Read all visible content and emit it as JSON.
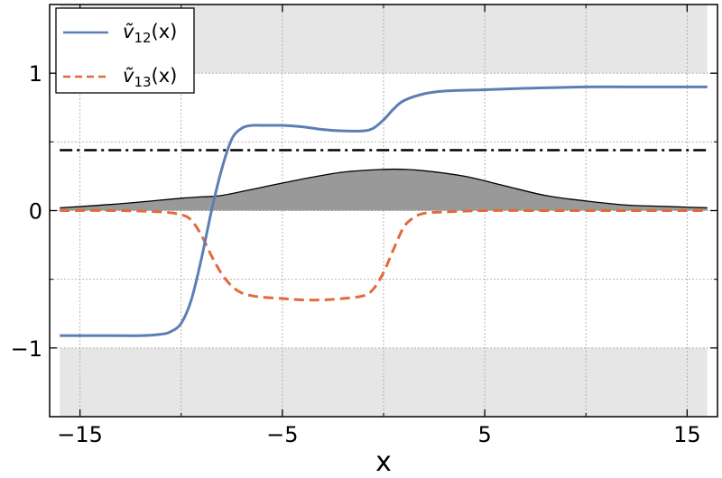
{
  "chart_data": {
    "type": "line",
    "title": "",
    "xlabel": "x",
    "ylabel": "",
    "xlim": [
      -16.5,
      16.5
    ],
    "ylim": [
      -1.5,
      1.5
    ],
    "grid": true,
    "legend_position": "top-left",
    "x_ticks": [
      -15,
      -5,
      5,
      15
    ],
    "x_tick_labels": [
      "−15",
      "−5",
      "5",
      "15"
    ],
    "y_ticks": [
      -1,
      0,
      1
    ],
    "y_tick_labels": [
      "−1",
      "0",
      "1"
    ],
    "colors": {
      "v12": "#5b7fb3",
      "v13": "#e26a3c",
      "shaded_band": "#e6e6e6",
      "filled_area": "#999999",
      "dashdot_line": "#000000"
    },
    "shaded_regions": [
      {
        "x_range": [
          -16,
          16
        ],
        "y_range": [
          1,
          1.5
        ]
      },
      {
        "x_range": [
          -16,
          16
        ],
        "y_range": [
          -1.5,
          -1
        ]
      }
    ],
    "reference_line": {
      "style": "dash-dot",
      "y": 0.44
    },
    "series": [
      {
        "name": "ṽ₁₂(x)",
        "legend_label": {
          "main": "ṽ",
          "sub": "12",
          "arg": "(x)"
        },
        "style": "solid",
        "x": [
          -16,
          -14,
          -12,
          -11,
          -10.5,
          -10,
          -9.5,
          -9,
          -8.5,
          -8,
          -7.5,
          -7,
          -6.5,
          -6,
          -5,
          -4,
          -3,
          -2,
          -1,
          -0.5,
          0,
          0.5,
          1,
          2,
          3,
          5,
          7,
          10,
          13,
          16
        ],
        "y": [
          -0.91,
          -0.91,
          -0.91,
          -0.9,
          -0.88,
          -0.82,
          -0.65,
          -0.35,
          0.0,
          0.3,
          0.52,
          0.6,
          0.62,
          0.62,
          0.62,
          0.61,
          0.59,
          0.58,
          0.58,
          0.6,
          0.66,
          0.74,
          0.8,
          0.85,
          0.87,
          0.88,
          0.89,
          0.9,
          0.9,
          0.9
        ]
      },
      {
        "name": "ṽ₁₃(x)",
        "legend_label": {
          "main": "ṽ",
          "sub": "13",
          "arg": "(x)"
        },
        "style": "dashed",
        "x": [
          -16,
          -13,
          -11,
          -10,
          -9.5,
          -9,
          -8.5,
          -8,
          -7.5,
          -7,
          -6.5,
          -6,
          -5,
          -4,
          -3,
          -2,
          -1,
          -0.5,
          0,
          0.5,
          1,
          1.5,
          2,
          3,
          5,
          8,
          12,
          16
        ],
        "y": [
          0.0,
          0.0,
          -0.01,
          -0.03,
          -0.07,
          -0.18,
          -0.33,
          -0.46,
          -0.55,
          -0.6,
          -0.62,
          -0.63,
          -0.64,
          -0.65,
          -0.65,
          -0.64,
          -0.62,
          -0.57,
          -0.45,
          -0.28,
          -0.12,
          -0.05,
          -0.02,
          -0.01,
          0.0,
          0.0,
          0.0,
          0.0
        ]
      },
      {
        "name": "",
        "style": "filled",
        "x": [
          -16,
          -13,
          -10,
          -9,
          -8,
          -6,
          -4,
          -2,
          0,
          1,
          2,
          4,
          6,
          8,
          10,
          12,
          14,
          16
        ],
        "y": [
          0.02,
          0.05,
          0.09,
          0.1,
          0.11,
          0.17,
          0.23,
          0.28,
          0.3,
          0.3,
          0.29,
          0.25,
          0.18,
          0.11,
          0.07,
          0.04,
          0.03,
          0.02
        ]
      }
    ]
  }
}
